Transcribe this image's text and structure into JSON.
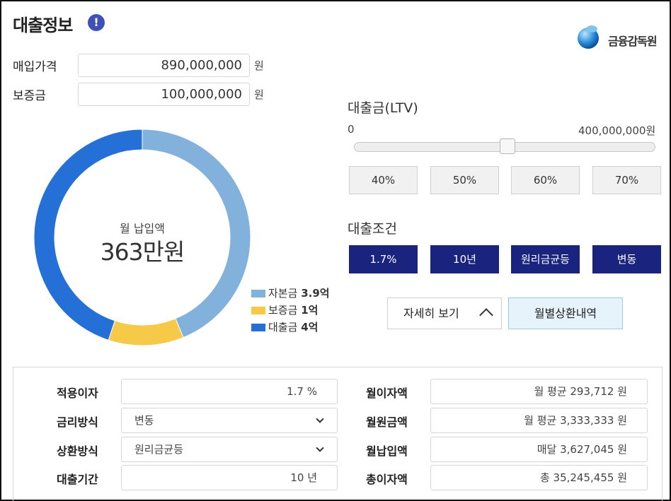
{
  "title": "대출정보",
  "info_icon_char": "!",
  "fss_logo_text": "금융감독원",
  "purchase": {
    "label": "매입가격",
    "value": "890,000,000",
    "unit": "원"
  },
  "deposit": {
    "label": "보증금",
    "value": "100,000,000",
    "unit": "원"
  },
  "donut": {
    "center_label": "월 납입액",
    "center_value": "363만원",
    "segments": [
      {
        "name": "자본금",
        "value": 3.9,
        "color": "#82b1dc"
      },
      {
        "name": "보증금",
        "value": 1.0,
        "color": "#f7c948"
      },
      {
        "name": "대출금",
        "value": 4.0,
        "color": "#2470d6"
      }
    ],
    "legend": [
      {
        "label": "자본금",
        "value": "3.9억",
        "color": "#82b1dc"
      },
      {
        "label": "보증금",
        "value": "1억",
        "color": "#f7c948"
      },
      {
        "label": "대출금",
        "value": "4억",
        "color": "#2470d6"
      }
    ]
  },
  "ltv": {
    "title": "대출금(LTV)",
    "min_label": "0",
    "max_label": "400,000,000원",
    "slider_fraction": 0.5,
    "presets": [
      "40%",
      "50%",
      "60%",
      "70%"
    ]
  },
  "conditions": {
    "title": "대출조건",
    "items": [
      "1.7%",
      "10년",
      "원리금균등",
      "변동"
    ],
    "accent_color": "#1a237e"
  },
  "buttons": {
    "detail": "자세히 보기",
    "monthly": "월별상환내역"
  },
  "details": {
    "rate": {
      "label": "적용이자",
      "value": "1.7 %"
    },
    "method": {
      "label": "금리방식",
      "value": "변동"
    },
    "repay": {
      "label": "상환방식",
      "value": "원리금균등"
    },
    "term": {
      "label": "대출기간",
      "value": "10 년"
    },
    "monthly_interest": {
      "label": "월이자액",
      "value": "월 평균 293,712 원"
    },
    "monthly_principal": {
      "label": "월원금액",
      "value": "월 평균 3,333,333 원"
    },
    "monthly_payment": {
      "label": "월납입액",
      "value": "매달 3,627,045 원"
    },
    "total_interest": {
      "label": "총이자액",
      "value": "총 35,245,455 원"
    }
  }
}
